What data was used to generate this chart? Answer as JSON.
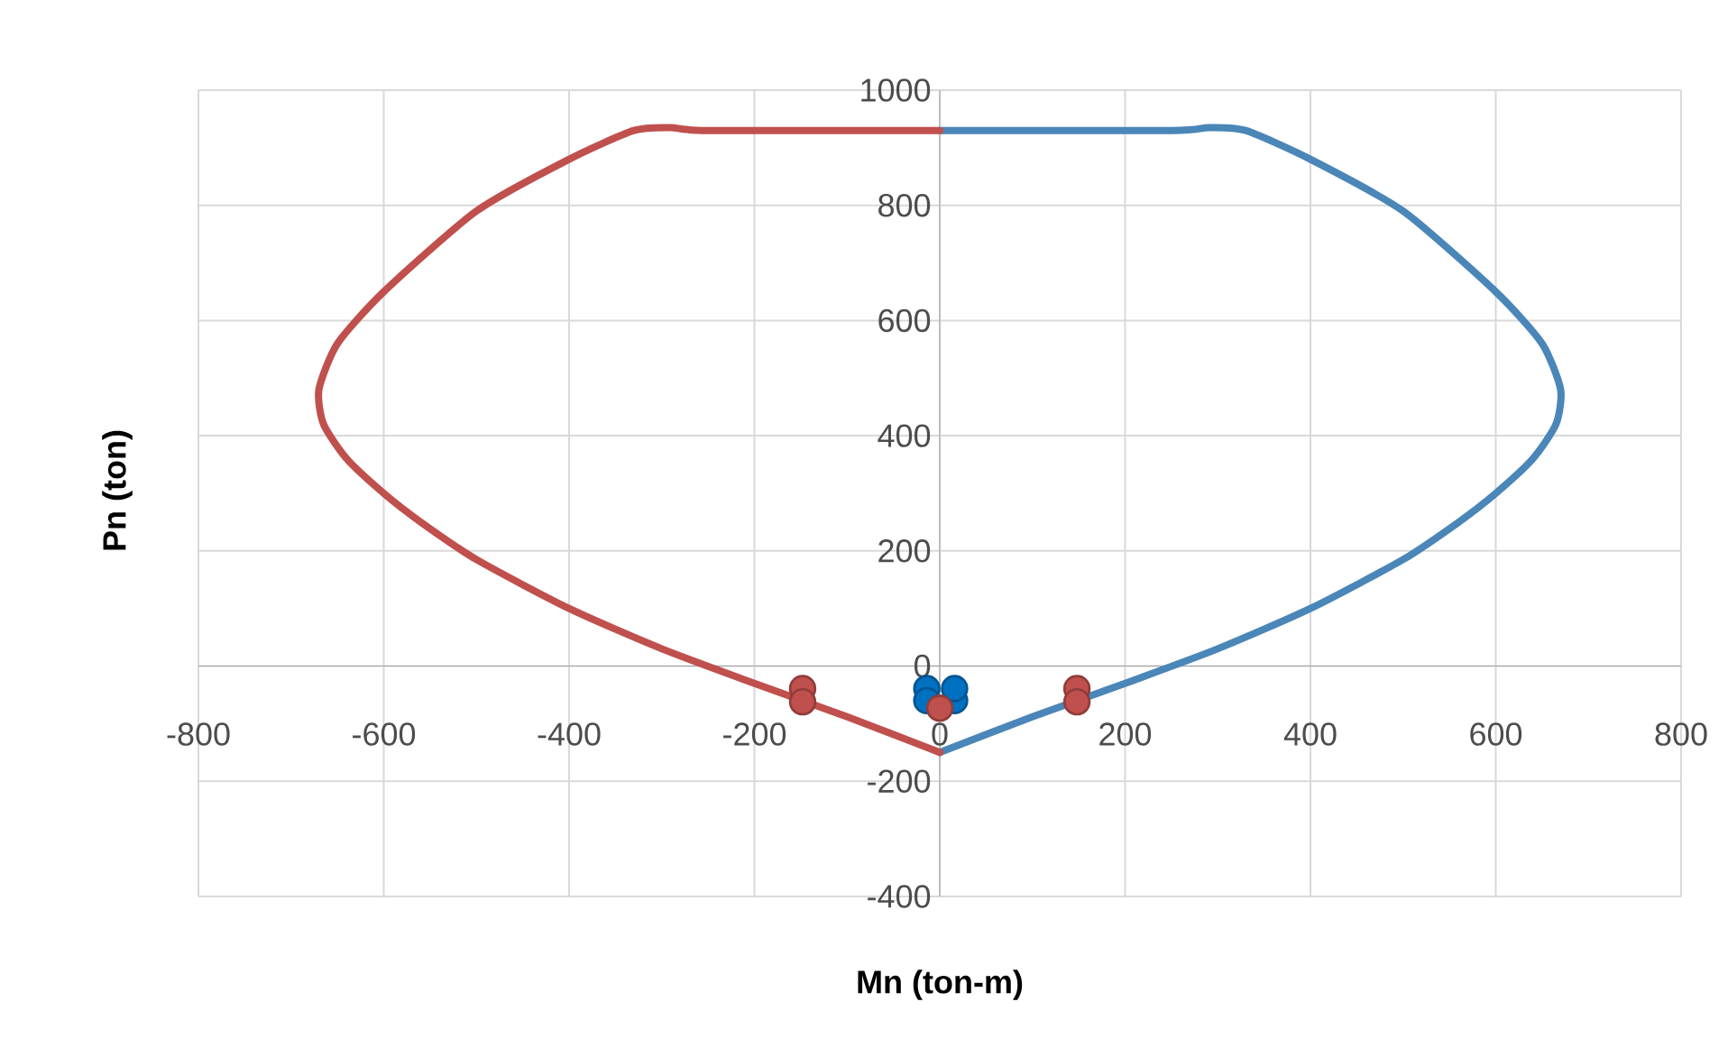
{
  "chart_data": {
    "type": "line",
    "xlabel": "Mn (ton-m)",
    "ylabel": "Pn (ton)",
    "xlim": [
      -800,
      800
    ],
    "ylim": [
      -400,
      1000
    ],
    "xticks": [
      -800,
      -600,
      -400,
      -200,
      0,
      200,
      400,
      600,
      800
    ],
    "yticks": [
      -400,
      -200,
      0,
      200,
      400,
      600,
      800,
      1000
    ],
    "grid": true,
    "line_style": "solid",
    "series": [
      {
        "color": "#4a86b8",
        "marker": "none",
        "x": [
          0,
          250,
          290,
          330,
          400,
          500,
          600,
          650,
          670,
          665,
          640,
          600,
          560,
          500,
          400,
          300,
          200,
          100,
          0
        ],
        "values": [
          930,
          930,
          935,
          930,
          880,
          790,
          650,
          560,
          480,
          420,
          360,
          300,
          250,
          185,
          100,
          30,
          -30,
          -88,
          -150
        ]
      },
      {
        "color": "#c0504d",
        "marker": "none",
        "x": [
          0,
          -250,
          -290,
          -330,
          -400,
          -500,
          -600,
          -650,
          -670,
          -665,
          -640,
          -600,
          -560,
          -500,
          -400,
          -300,
          -200,
          -100,
          0
        ],
        "values": [
          930,
          930,
          935,
          930,
          880,
          790,
          650,
          560,
          480,
          420,
          360,
          300,
          250,
          185,
          100,
          30,
          -30,
          -88,
          -150
        ]
      },
      {
        "type": "scatter",
        "color": "#0070c0",
        "marker": "circle",
        "x": [
          -14,
          16,
          -14,
          16
        ],
        "values": [
          -39,
          -60,
          -60,
          -39
        ]
      },
      {
        "type": "scatter",
        "color": "#c0504d",
        "marker": "circle",
        "x": [
          -148,
          -148,
          148,
          148,
          0
        ],
        "values": [
          -39,
          -62,
          -39,
          -62,
          -73
        ]
      }
    ]
  }
}
